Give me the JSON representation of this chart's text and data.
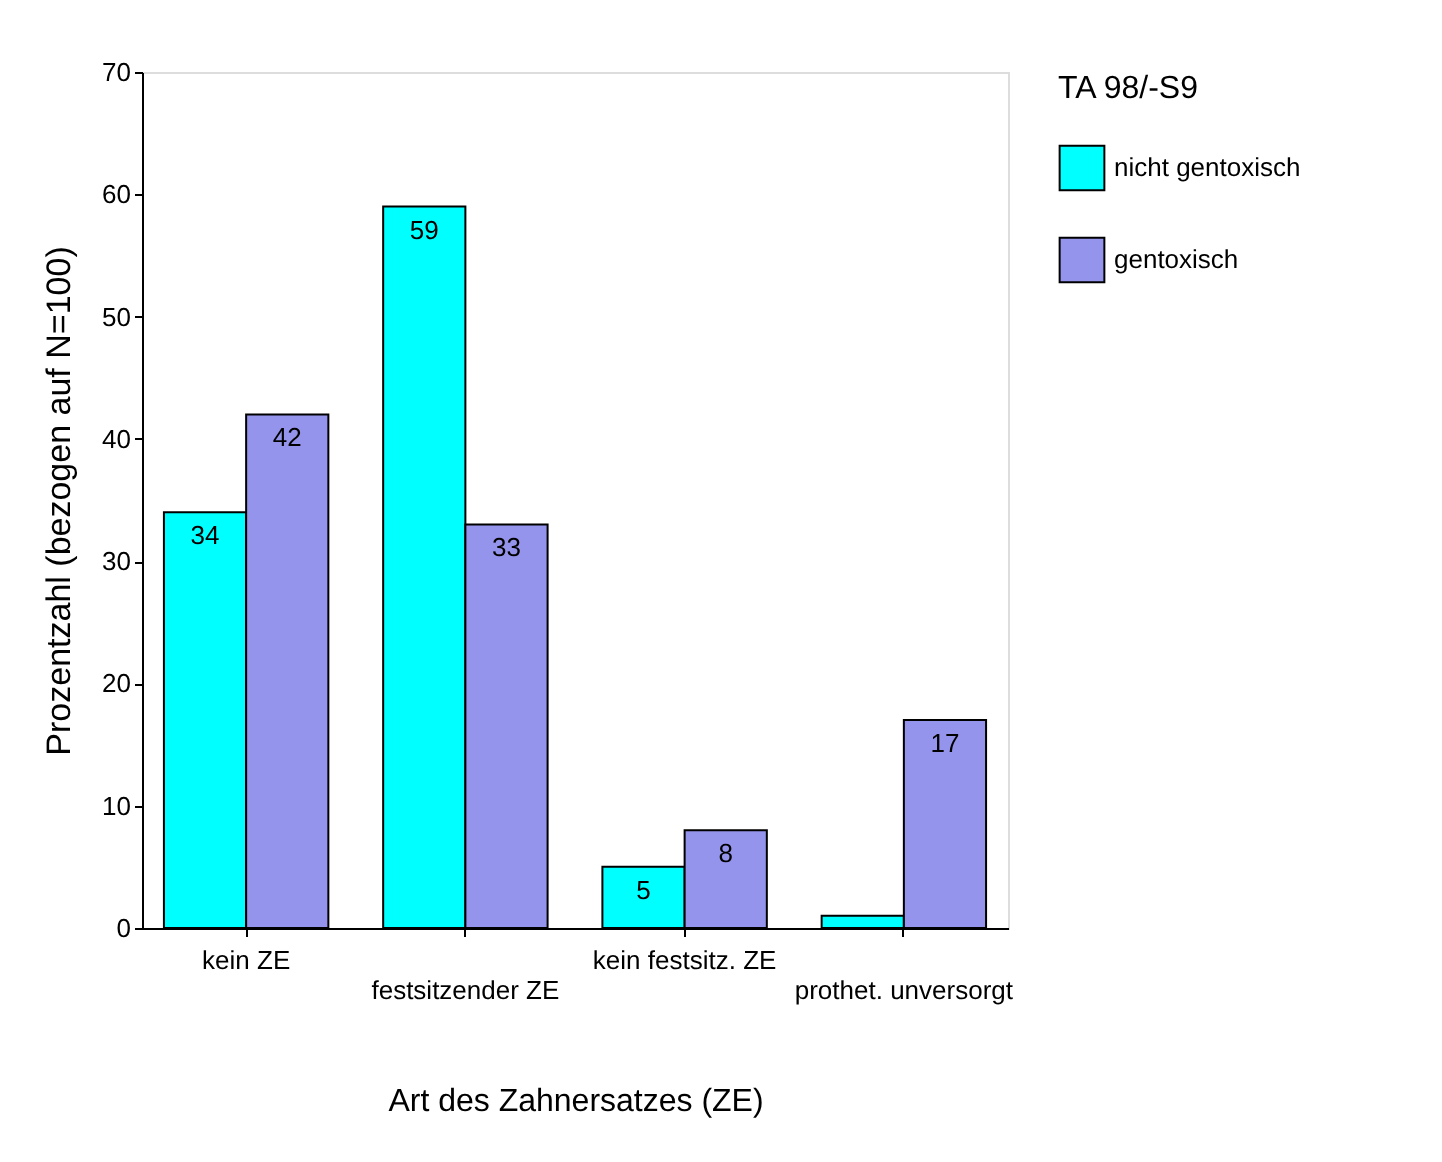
{
  "chart_data": {
    "type": "bar",
    "xlabel": "Art des Zahnersatzes (ZE)",
    "ylabel": "Prozentzahl (bezogen auf N=100)",
    "legend_title": "TA 98/-S9",
    "categories": [
      "kein ZE",
      "festsitzender ZE",
      "kein festsitz. ZE",
      "prothet. unversorgt"
    ],
    "series": [
      {
        "name": "nicht gentoxisch",
        "color": "#00ffff",
        "values": [
          34,
          59,
          5,
          1
        ],
        "value_labels": [
          "34",
          "59",
          "5",
          null
        ]
      },
      {
        "name": "gentoxisch",
        "color": "#9494ec",
        "values": [
          42,
          33,
          8,
          17
        ],
        "value_labels": [
          "42",
          "33",
          "8",
          "17"
        ]
      }
    ],
    "ylim": [
      0,
      70
    ],
    "yticks": [
      0,
      10,
      20,
      30,
      40,
      50,
      60,
      70
    ],
    "grid": false,
    "legend": "right"
  }
}
